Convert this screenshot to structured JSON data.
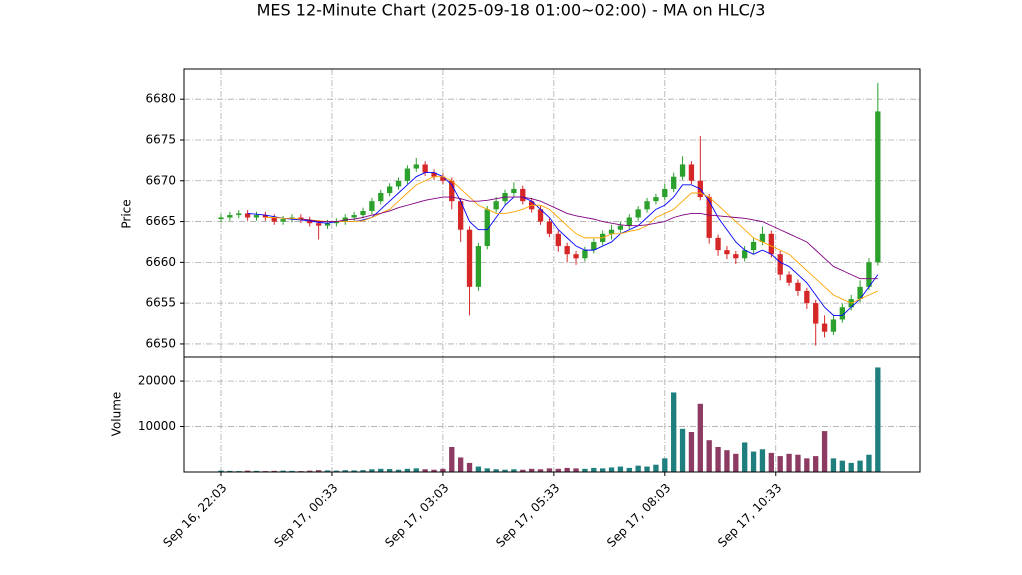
{
  "chart_data": {
    "type": "candlestick",
    "title": "MES 12-Minute Chart (2025-09-18 01:00~02:00) - MA on HLC/3",
    "ylabel": "Price",
    "volume_label": "Volume",
    "x": [
      "Sep 16, 22:03",
      "Sep 16, 22:15",
      "Sep 16, 22:27",
      "Sep 16, 22:39",
      "Sep 16, 22:51",
      "Sep 16, 23:03",
      "Sep 16, 23:15",
      "Sep 16, 23:27",
      "Sep 16, 23:39",
      "Sep 16, 23:51",
      "Sep 17, 00:03",
      "Sep 17, 00:15",
      "Sep 17, 00:27",
      "Sep 17, 00:39",
      "Sep 17, 00:51",
      "Sep 17, 01:03",
      "Sep 17, 01:15",
      "Sep 17, 01:27",
      "Sep 17, 01:39",
      "Sep 17, 01:51",
      "Sep 17, 02:03",
      "Sep 17, 02:15",
      "Sep 17, 02:27",
      "Sep 17, 02:39",
      "Sep 17, 02:51",
      "Sep 17, 03:03",
      "Sep 17, 03:15",
      "Sep 17, 03:27",
      "Sep 17, 03:39",
      "Sep 17, 03:51",
      "Sep 17, 04:03",
      "Sep 17, 04:15",
      "Sep 17, 04:27",
      "Sep 17, 04:39",
      "Sep 17, 04:51",
      "Sep 17, 05:03",
      "Sep 17, 05:15",
      "Sep 17, 05:27",
      "Sep 17, 05:39",
      "Sep 17, 05:51",
      "Sep 17, 06:03",
      "Sep 17, 06:15",
      "Sep 17, 06:27",
      "Sep 17, 06:39",
      "Sep 17, 06:51",
      "Sep 17, 07:03",
      "Sep 17, 07:15",
      "Sep 17, 07:27",
      "Sep 17, 07:39",
      "Sep 17, 07:51",
      "Sep 17, 08:03",
      "Sep 17, 08:15",
      "Sep 17, 08:27",
      "Sep 17, 08:39",
      "Sep 17, 08:51",
      "Sep 17, 09:03",
      "Sep 17, 09:15",
      "Sep 17, 09:27",
      "Sep 17, 09:39",
      "Sep 17, 09:51",
      "Sep 17, 10:03",
      "Sep 17, 10:15",
      "Sep 17, 10:27",
      "Sep 17, 10:39",
      "Sep 17, 10:51",
      "Sep 17, 11:03",
      "Sep 17, 11:15",
      "Sep 17, 11:27",
      "Sep 17, 11:39",
      "Sep 17, 11:51",
      "Sep 17, 12:03",
      "Sep 17, 12:15",
      "Sep 17, 12:27",
      "Sep 17, 12:39",
      "Sep 17, 12:51"
    ],
    "open": [
      6665.3,
      6665.5,
      6665.8,
      6666,
      6665.5,
      6665.8,
      6665.5,
      6665,
      6665.3,
      6665.5,
      6665.2,
      6664.8,
      6664.5,
      6664.8,
      6665,
      6665.5,
      6665.8,
      6666.3,
      6667.5,
      6668.5,
      6669.3,
      6670,
      6671.5,
      6672,
      6671,
      6670.5,
      6670,
      6667.5,
      6664,
      6657,
      6662,
      6666.5,
      6667.5,
      6668.5,
      6669,
      6667.5,
      6666.5,
      6665,
      6663.5,
      6662,
      6661,
      6660.5,
      6661.5,
      6662.5,
      6663.5,
      6664,
      6664.5,
      6665.5,
      6666.5,
      6667.5,
      6668,
      6669,
      6670.5,
      6672,
      6670,
      6668,
      6663,
      6661.5,
      6661,
      6660.5,
      6661.5,
      6662.5,
      6663.5,
      6661,
      6658.5,
      6657.5,
      6656.5,
      6655,
      6652.5,
      6651.5,
      6653,
      6654.5,
      6655.5,
      6657,
      6660
    ],
    "high": [
      6665.9,
      6666.2,
      6666.4,
      6666.4,
      6666.2,
      6666.2,
      6665.9,
      6665.7,
      6665.9,
      6665.9,
      6665.6,
      6665.2,
      6665.2,
      6665.4,
      6665.9,
      6666.2,
      6666.7,
      6667.9,
      6668.9,
      6669.7,
      6670.4,
      6671.9,
      6672.8,
      6672.4,
      6671.4,
      6670.9,
      6670.4,
      6667.9,
      6664.4,
      6662.4,
      6666.9,
      6668,
      6668.9,
      6669.8,
      6669.4,
      6667.9,
      6666.9,
      6665.4,
      6663.9,
      6662.4,
      6661.4,
      6661.9,
      6662.9,
      6663.9,
      6664.6,
      6665,
      6665.9,
      6666.9,
      6667.9,
      6668.4,
      6669.6,
      6671,
      6673,
      6672.4,
      6675.5,
      6668.4,
      6663.4,
      6662,
      6661.4,
      6662,
      6663,
      6664.4,
      6663.9,
      6661.4,
      6658.9,
      6657.9,
      6656.9,
      6655.4,
      6653.5,
      6653.5,
      6655,
      6656,
      6657.8,
      6660.5,
      6682
    ],
    "low": [
      6664.9,
      6665.1,
      6665.4,
      6665.1,
      6665.1,
      6665.1,
      6664.6,
      6664.6,
      6664.9,
      6664.8,
      6664.4,
      6662.8,
      6664.1,
      6664.4,
      6664.6,
      6665.1,
      6665.4,
      6665.9,
      6667.1,
      6668.1,
      6668.9,
      6669.6,
      6671.1,
      6670.6,
      6670.1,
      6669.6,
      6666.5,
      6662.5,
      6653.5,
      6656.5,
      6661.6,
      6666.1,
      6667.1,
      6668.1,
      6667.1,
      6666.1,
      6664.6,
      6663.1,
      6661.3,
      6660,
      6659.7,
      6660.1,
      6661.1,
      6662.1,
      6662.8,
      6663.6,
      6664.1,
      6665.1,
      6666.1,
      6667.1,
      6667.6,
      6668.6,
      6670.1,
      6669.6,
      6667.6,
      6662.3,
      6660.8,
      6660.4,
      6659.8,
      6660.1,
      6661.1,
      6662.1,
      6660.6,
      6657.8,
      6657.1,
      6655.9,
      6654.3,
      6649.8,
      6650.8,
      6651.1,
      6652.6,
      6654.1,
      6655.1,
      6656.6,
      6659.6
    ],
    "close": [
      6665.5,
      6665.8,
      6666,
      6665.5,
      6665.8,
      6665.5,
      6665,
      6665.3,
      6665.5,
      6665.2,
      6664.8,
      6664.5,
      6664.8,
      6665,
      6665.5,
      6665.8,
      6666.3,
      6667.5,
      6668.5,
      6669.3,
      6670,
      6671.5,
      6672,
      6671,
      6670.5,
      6670,
      6667.5,
      6664,
      6657,
      6662,
      6666.5,
      6667.5,
      6668.5,
      6669,
      6667.5,
      6666.5,
      6665,
      6663.5,
      6662,
      6661,
      6660.5,
      6661.5,
      6662.5,
      6663.5,
      6664,
      6664.5,
      6665.5,
      6666.5,
      6667.5,
      6668,
      6669,
      6670.5,
      6672,
      6670,
      6668,
      6663,
      6661.5,
      6661,
      6660.5,
      6661.5,
      6662.5,
      6663.5,
      6661,
      6658.5,
      6657.5,
      6656.5,
      6655,
      6652.5,
      6651.5,
      6653,
      6654.5,
      6655.5,
      6657,
      6660,
      6678.5
    ],
    "volume": [
      300,
      250,
      200,
      300,
      250,
      200,
      250,
      300,
      250,
      200,
      300,
      400,
      350,
      300,
      400,
      350,
      400,
      600,
      700,
      650,
      500,
      700,
      800,
      600,
      500,
      700,
      5500,
      3200,
      2000,
      1200,
      800,
      600,
      500,
      600,
      500,
      700,
      600,
      800,
      700,
      900,
      800,
      700,
      900,
      800,
      1000,
      1200,
      900,
      1400,
      1200,
      1600,
      3000,
      17500,
      9500,
      8800,
      15000,
      7000,
      5500,
      4800,
      4000,
      6500,
      4500,
      5000,
      4200,
      3500,
      4000,
      3800,
      3000,
      3500,
      9000,
      3000,
      2500,
      2000,
      2500,
      3800,
      23000
    ],
    "colors": {
      "up": "#2ca02c",
      "down": "#d62728",
      "volume_up": "#1f7f7f",
      "volume_down": "#8e3b63"
    },
    "ma_lines": [
      {
        "color": "#0000ff",
        "values": [
          null,
          null,
          null,
          6666,
          6665.9,
          6665.8,
          6665.6,
          6665.4,
          6665.3,
          6665.2,
          6665.1,
          6664.9,
          6664.8,
          6665,
          6665,
          6665,
          6665.2,
          6665.5,
          6666.5,
          6667.5,
          6668.5,
          6669.5,
          6670.5,
          6671,
          6671,
          6670.5,
          6669.5,
          6667.5,
          6665,
          6664,
          6664,
          6665.5,
          6667,
          6668,
          6668,
          6667.5,
          6666.5,
          6665.5,
          6664,
          6663,
          6662,
          6661.5,
          6661.5,
          6662,
          6662.5,
          6663.5,
          6664,
          6664.5,
          6665.5,
          6666.5,
          6667,
          6668,
          6669.5,
          6669.5,
          6669,
          6667.5,
          6665.5,
          6664,
          6662.5,
          6661.5,
          6661,
          6661.5,
          6661,
          6660,
          6659.5,
          6658.5,
          6657.5,
          6656,
          6654.5,
          6653.5,
          6653.5,
          6654.5,
          6655.5,
          6657,
          6658.5
        ]
      },
      {
        "color": "#ffa500",
        "values": [
          null,
          null,
          null,
          null,
          null,
          6665.5,
          6665.5,
          6665.4,
          6665.4,
          6665.3,
          6665.2,
          6665.1,
          6665,
          6665,
          6665,
          6665,
          6665.1,
          6665.5,
          6666,
          6666.5,
          6667.5,
          6668.5,
          6669.5,
          6670,
          6670.5,
          6670.5,
          6670,
          6669,
          6668,
          6667,
          6666.5,
          6666,
          6666,
          6666.2,
          6666.5,
          6667,
          6667,
          6666.5,
          6665.5,
          6664.5,
          6663.5,
          6663,
          6663,
          6663,
          6663.5,
          6663.5,
          6663.8,
          6664,
          6664.5,
          6665.5,
          6666,
          6666.5,
          6667.5,
          6668.5,
          6668.5,
          6668,
          6667,
          6666,
          6665,
          6664,
          6663,
          6662.5,
          6662,
          6661.5,
          6661,
          6660,
          6659,
          6658,
          6657,
          6656,
          6655.5,
          6655,
          6655.5,
          6656,
          6656.5
        ]
      },
      {
        "color": "#800080",
        "values": [
          null,
          null,
          null,
          null,
          null,
          null,
          null,
          null,
          null,
          6665.3,
          6665.2,
          6665,
          6665,
          6665,
          6665.2,
          6665.3,
          6665.5,
          6665.8,
          6666,
          6666.3,
          6666.7,
          6667,
          6667.3,
          6667.6,
          6667.8,
          6668,
          6668,
          6667.8,
          6667.5,
          6667.5,
          6667.6,
          6667.8,
          6668,
          6668,
          6668,
          6667.8,
          6667.5,
          6667,
          6666.5,
          6666,
          6665.7,
          6665.5,
          6665.3,
          6665,
          6664.8,
          6664.6,
          6664.5,
          6664.5,
          6664.6,
          6664.8,
          6665,
          6665.5,
          6665.8,
          6666,
          6666,
          6665.8,
          6665.7,
          6665.6,
          6665.5,
          6665.4,
          6665.2,
          6665,
          6664.5,
          6664,
          6663.5,
          6663,
          6662.5,
          6661.5,
          6660.5,
          6659.5,
          6659,
          6658.5,
          6658,
          6658,
          6658
        ]
      }
    ],
    "xlim": [
      "Sep 16, 21:13",
      "Sep 17, 13:48"
    ],
    "xticks": [
      "Sep 16, 22:03",
      "Sep 17, 00:33",
      "Sep 17, 03:03",
      "Sep 17, 05:33",
      "Sep 17, 08:03",
      "Sep 17, 10:33"
    ],
    "ylim": [
      6648.4,
      6683.7
    ],
    "yticks": [
      6650,
      6655,
      6660,
      6665,
      6670,
      6675,
      6680
    ],
    "vlim": [
      0,
      25300
    ],
    "vticks": [
      10000,
      20000
    ],
    "grid": true
  }
}
